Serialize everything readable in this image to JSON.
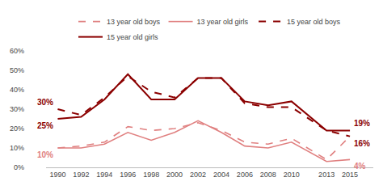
{
  "chart_data": {
    "type": "line",
    "x": [
      1990,
      1992,
      1994,
      1996,
      1998,
      2000,
      2002,
      2004,
      2006,
      2008,
      2010,
      2013,
      2015
    ],
    "series": [
      {
        "name": "13 year old boys",
        "color": "#e08080",
        "line_style": "dashed",
        "values": [
          10,
          11,
          13,
          21,
          19,
          20,
          23,
          19,
          13,
          12,
          15,
          4,
          16
        ]
      },
      {
        "name": "13 year old girls",
        "color": "#e08080",
        "line_style": "solid",
        "values": [
          10,
          10,
          12,
          18,
          14,
          18,
          24,
          18,
          11,
          10,
          13,
          3,
          4
        ]
      },
      {
        "name": "15 year old boys",
        "color": "#8b0000",
        "line_style": "dashed",
        "values": [
          30,
          27,
          36,
          47,
          39,
          36,
          46,
          46,
          33,
          31,
          31,
          19,
          16
        ]
      },
      {
        "name": "15 year old girls",
        "color": "#8b0000",
        "line_style": "solid",
        "values": [
          25,
          26,
          35,
          48,
          35,
          35,
          46,
          46,
          34,
          32,
          34,
          19,
          19
        ]
      }
    ],
    "xlim": [
      1989,
      2017
    ],
    "xticks": [
      1990,
      1992,
      1994,
      1996,
      1998,
      2000,
      2002,
      2004,
      2006,
      2008,
      2010,
      2013,
      2015
    ],
    "ylim": [
      0,
      60
    ],
    "yticks": [
      {
        "value": 0,
        "label": "0%"
      },
      {
        "value": 10,
        "label": "10%"
      },
      {
        "value": 20,
        "label": "20%"
      },
      {
        "value": 30,
        "label": "30%"
      },
      {
        "value": 40,
        "label": "40%"
      },
      {
        "value": 50,
        "label": "50%"
      },
      {
        "value": 60,
        "label": "60%"
      }
    ],
    "grid": false,
    "legend": "top",
    "annotations": [
      {
        "text": "30%",
        "x": 1990,
        "y": 30,
        "color": "#8b0000"
      },
      {
        "text": "25%",
        "x": 1990,
        "y": 25,
        "color": "#8b0000"
      },
      {
        "text": "10%",
        "x": 1990,
        "y": 10,
        "color": "#e08080"
      },
      {
        "text": "19%",
        "x": 2015,
        "y": 19,
        "color": "#8b0000"
      },
      {
        "text": "16%",
        "x": 2015,
        "y": 16,
        "color": "#8b0000"
      },
      {
        "text": "4%",
        "x": 2015,
        "y": 4,
        "color": "#e08080"
      }
    ]
  }
}
